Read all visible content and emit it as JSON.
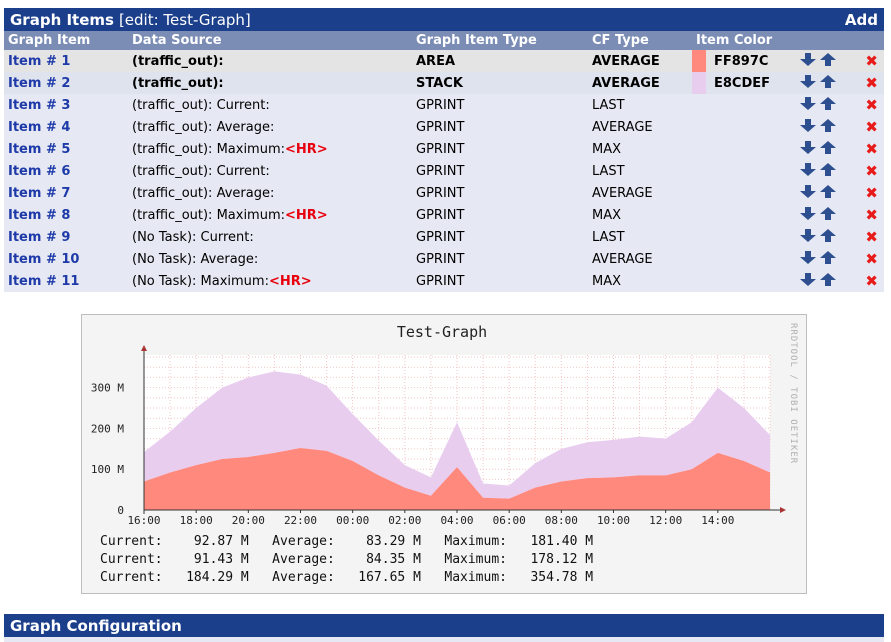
{
  "header": {
    "title": "Graph Items",
    "subtitle": "[edit: Test-Graph]",
    "add_label": "Add"
  },
  "columns": [
    "Graph Item",
    "Data Source",
    "Graph Item Type",
    "CF Type",
    "Item Color"
  ],
  "rows": [
    {
      "item": "Item # 1",
      "source": "(traffic_out):",
      "hr": "",
      "type": "AREA",
      "cf": "AVERAGE",
      "color_hex": "#FF897C",
      "color": "FF897C"
    },
    {
      "item": "Item # 2",
      "source": "(traffic_out):",
      "hr": "",
      "type": "STACK",
      "cf": "AVERAGE",
      "color_hex": "#E8CDEF",
      "color": "E8CDEF"
    },
    {
      "item": "Item # 3",
      "source": "(traffic_out): Current:",
      "hr": "",
      "type": "GPRINT",
      "cf": "LAST",
      "color_hex": "",
      "color": ""
    },
    {
      "item": "Item # 4",
      "source": "(traffic_out): Average:",
      "hr": "",
      "type": "GPRINT",
      "cf": "AVERAGE",
      "color_hex": "",
      "color": ""
    },
    {
      "item": "Item # 5",
      "source": "(traffic_out): Maximum:",
      "hr": "<HR>",
      "type": "GPRINT",
      "cf": "MAX",
      "color_hex": "",
      "color": ""
    },
    {
      "item": "Item # 6",
      "source": "(traffic_out): Current:",
      "hr": "",
      "type": "GPRINT",
      "cf": "LAST",
      "color_hex": "",
      "color": ""
    },
    {
      "item": "Item # 7",
      "source": "(traffic_out): Average:",
      "hr": "",
      "type": "GPRINT",
      "cf": "AVERAGE",
      "color_hex": "",
      "color": ""
    },
    {
      "item": "Item # 8",
      "source": "(traffic_out): Maximum:",
      "hr": "<HR>",
      "type": "GPRINT",
      "cf": "MAX",
      "color_hex": "",
      "color": ""
    },
    {
      "item": "Item # 9",
      "source": "(No Task): Current:",
      "hr": "",
      "type": "GPRINT",
      "cf": "LAST",
      "color_hex": "",
      "color": ""
    },
    {
      "item": "Item # 10",
      "source": "(No Task): Average:",
      "hr": "",
      "type": "GPRINT",
      "cf": "AVERAGE",
      "color_hex": "",
      "color": ""
    },
    {
      "item": "Item # 11",
      "source": "(No Task): Maximum:",
      "hr": "<HR>",
      "type": "GPRINT",
      "cf": "MAX",
      "color_hex": "",
      "color": ""
    }
  ],
  "graph": {
    "title": "Test-Graph",
    "watermark": "RRDTOOL / TOBI OETIKER",
    "yticks": [
      "0",
      "100 M",
      "200 M",
      "300 M"
    ],
    "xticks": [
      "16:00",
      "18:00",
      "20:00",
      "22:00",
      "00:00",
      "02:00",
      "04:00",
      "06:00",
      "08:00",
      "10:00",
      "12:00",
      "14:00"
    ],
    "legend": [
      "Current:    92.87 M   Average:    83.29 M   Maximum:   181.40 M",
      "Current:    91.43 M   Average:    84.35 M   Maximum:   178.12 M",
      "Current:   184.29 M   Average:   167.65 M   Maximum:   354.78 M"
    ]
  },
  "chart_data": {
    "type": "area",
    "title": "Test-Graph",
    "x": [
      "16:00",
      "17:00",
      "18:00",
      "19:00",
      "20:00",
      "21:00",
      "22:00",
      "23:00",
      "00:00",
      "01:00",
      "02:00",
      "03:00",
      "03:30",
      "04:00",
      "05:00",
      "06:00",
      "07:00",
      "08:00",
      "09:00",
      "10:00",
      "11:00",
      "12:00",
      "13:00",
      "14:00",
      "15:00"
    ],
    "ylim": [
      0,
      380
    ],
    "series": [
      {
        "values": [
          70,
          92,
          110,
          125,
          130,
          140,
          152,
          145,
          120,
          85,
          55,
          35,
          105,
          30,
          28,
          55,
          70,
          78,
          80,
          85,
          85,
          100,
          140,
          120,
          92
        ]
      },
      {
        "values": [
          72,
          100,
          140,
          175,
          195,
          200,
          180,
          160,
          115,
          85,
          55,
          45,
          110,
          35,
          32,
          60,
          80,
          88,
          92,
          95,
          90,
          115,
          160,
          130,
          92
        ]
      }
    ],
    "grid": true,
    "legend": "none"
  },
  "config": {
    "title": "Graph Configuration"
  }
}
